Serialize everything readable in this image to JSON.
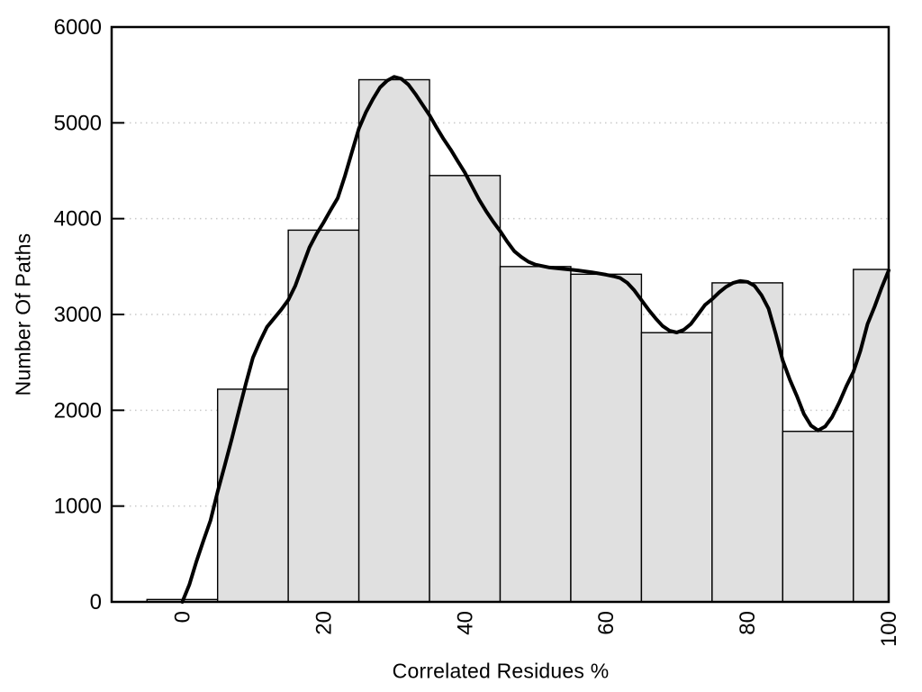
{
  "chart_data": {
    "type": "bar",
    "subtype": "histogram-with-smoothed-line",
    "title": "",
    "xlabel": "Correlated Residues %",
    "ylabel": "Number Of Paths",
    "xlim": [
      -10,
      100
    ],
    "ylim": [
      0,
      6000
    ],
    "x_ticks": [
      0,
      20,
      40,
      60,
      80,
      100
    ],
    "y_ticks": [
      0,
      1000,
      2000,
      3000,
      4000,
      5000,
      6000
    ],
    "x_tick_labels": [
      "0",
      "20",
      "40",
      "60",
      "80",
      "100"
    ],
    "y_tick_labels": [
      "0",
      "1000",
      "2000",
      "3000",
      "4000",
      "5000",
      "6000"
    ],
    "grid": "horizontal dotted lines at each y tick, no vertical grid",
    "legend": "none",
    "bar_bin_width": 10,
    "bars": [
      {
        "bin": [
          -5,
          5
        ],
        "center": 0,
        "value": 25
      },
      {
        "bin": [
          5,
          15
        ],
        "center": 10,
        "value": 2220
      },
      {
        "bin": [
          15,
          25
        ],
        "center": 20,
        "value": 3880
      },
      {
        "bin": [
          25,
          35
        ],
        "center": 30,
        "value": 5450
      },
      {
        "bin": [
          35,
          45
        ],
        "center": 40,
        "value": 4450
      },
      {
        "bin": [
          45,
          55
        ],
        "center": 50,
        "value": 3500
      },
      {
        "bin": [
          55,
          65
        ],
        "center": 60,
        "value": 3420
      },
      {
        "bin": [
          65,
          75
        ],
        "center": 70,
        "value": 2810
      },
      {
        "bin": [
          75,
          85
        ],
        "center": 80,
        "value": 3330
      },
      {
        "bin": [
          85,
          95
        ],
        "center": 90,
        "value": 1780
      },
      {
        "bin": [
          95,
          100
        ],
        "center": 97.5,
        "value": 3470
      }
    ],
    "series": [
      {
        "name": "smoothed-density-curve",
        "type": "line",
        "points": [
          [
            0,
            0
          ],
          [
            1,
            180
          ],
          [
            2,
            420
          ],
          [
            3,
            640
          ],
          [
            4,
            850
          ],
          [
            5,
            1150
          ],
          [
            6,
            1420
          ],
          [
            7,
            1700
          ],
          [
            8,
            1990
          ],
          [
            9,
            2280
          ],
          [
            10,
            2550
          ],
          [
            11,
            2720
          ],
          [
            12,
            2870
          ],
          [
            13,
            2960
          ],
          [
            14,
            3050
          ],
          [
            15,
            3150
          ],
          [
            16,
            3300
          ],
          [
            17,
            3500
          ],
          [
            18,
            3700
          ],
          [
            19,
            3840
          ],
          [
            20,
            3960
          ],
          [
            21,
            4090
          ],
          [
            22,
            4215
          ],
          [
            23,
            4440
          ],
          [
            24,
            4690
          ],
          [
            25,
            4940
          ],
          [
            26,
            5110
          ],
          [
            27,
            5250
          ],
          [
            28,
            5370
          ],
          [
            29,
            5440
          ],
          [
            30,
            5480
          ],
          [
            31,
            5460
          ],
          [
            32,
            5400
          ],
          [
            33,
            5300
          ],
          [
            34,
            5190
          ],
          [
            35,
            5080
          ],
          [
            36,
            4950
          ],
          [
            37,
            4830
          ],
          [
            38,
            4720
          ],
          [
            39,
            4600
          ],
          [
            40,
            4480
          ],
          [
            41,
            4340
          ],
          [
            42,
            4200
          ],
          [
            43,
            4080
          ],
          [
            44,
            3970
          ],
          [
            45,
            3870
          ],
          [
            46,
            3760
          ],
          [
            47,
            3660
          ],
          [
            48,
            3600
          ],
          [
            49,
            3550
          ],
          [
            50,
            3520
          ],
          [
            52,
            3490
          ],
          [
            54,
            3475
          ],
          [
            56,
            3460
          ],
          [
            58,
            3440
          ],
          [
            60,
            3415
          ],
          [
            61,
            3400
          ],
          [
            62,
            3380
          ],
          [
            63,
            3330
          ],
          [
            64,
            3250
          ],
          [
            65,
            3150
          ],
          [
            66,
            3050
          ],
          [
            67,
            2960
          ],
          [
            68,
            2880
          ],
          [
            69,
            2830
          ],
          [
            70,
            2812
          ],
          [
            71,
            2840
          ],
          [
            72,
            2900
          ],
          [
            73,
            3000
          ],
          [
            74,
            3100
          ],
          [
            75,
            3160
          ],
          [
            76,
            3230
          ],
          [
            77,
            3290
          ],
          [
            78,
            3330
          ],
          [
            79,
            3350
          ],
          [
            80,
            3340
          ],
          [
            81,
            3300
          ],
          [
            82,
            3200
          ],
          [
            83,
            3060
          ],
          [
            84,
            2800
          ],
          [
            85,
            2520
          ],
          [
            86,
            2320
          ],
          [
            87,
            2150
          ],
          [
            88,
            1960
          ],
          [
            89,
            1840
          ],
          [
            90,
            1790
          ],
          [
            91,
            1830
          ],
          [
            92,
            1930
          ],
          [
            93,
            2080
          ],
          [
            94,
            2250
          ],
          [
            95,
            2400
          ],
          [
            96,
            2620
          ],
          [
            97,
            2900
          ],
          [
            98,
            3080
          ],
          [
            99,
            3280
          ],
          [
            100,
            3460
          ]
        ]
      }
    ],
    "colors": {
      "background": "#ffffff",
      "bar_fill": "#e0e0e0",
      "bar_border": "#000000",
      "curve": "#000000",
      "axis": "#000000",
      "gridline": "#c9c9c9",
      "text": "#000000"
    }
  }
}
